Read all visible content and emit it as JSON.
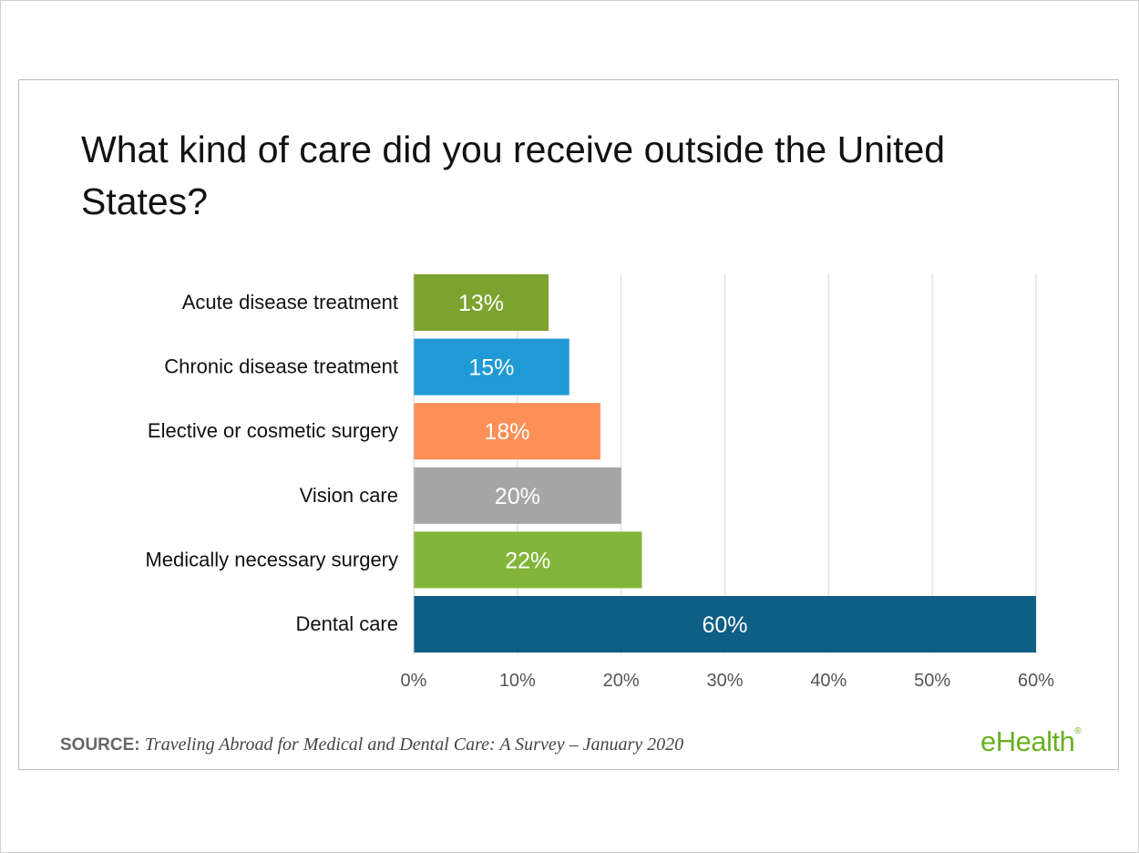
{
  "title": "What kind of care did you receive outside the United States?",
  "source": {
    "label": "SOURCE:",
    "text": "Traveling Abroad for Medical and Dental Care: A Survey – January 2020"
  },
  "logo": {
    "text": "eHealth",
    "mark": "®"
  },
  "chart_data": {
    "type": "bar",
    "orientation": "horizontal",
    "categories": [
      "Acute disease treatment",
      "Chronic disease treatment",
      "Elective or cosmetic surgery",
      "Vision care",
      "Medically necessary surgery",
      "Dental care"
    ],
    "values": [
      13,
      15,
      18,
      20,
      22,
      60
    ],
    "data_labels": [
      "13%",
      "15%",
      "18%",
      "20%",
      "22%",
      "60%"
    ],
    "colors": [
      "#7ca22f",
      "#1f9ad6",
      "#fd8f57",
      "#a6a6a6",
      "#82b53a",
      "#0f5e85"
    ],
    "xlim": [
      0,
      60
    ],
    "ticks": [
      0,
      10,
      20,
      30,
      40,
      50,
      60
    ],
    "tick_labels": [
      "0%",
      "10%",
      "20%",
      "30%",
      "40%",
      "50%",
      "60%"
    ],
    "grid": true,
    "xlabel": "",
    "ylabel": ""
  }
}
